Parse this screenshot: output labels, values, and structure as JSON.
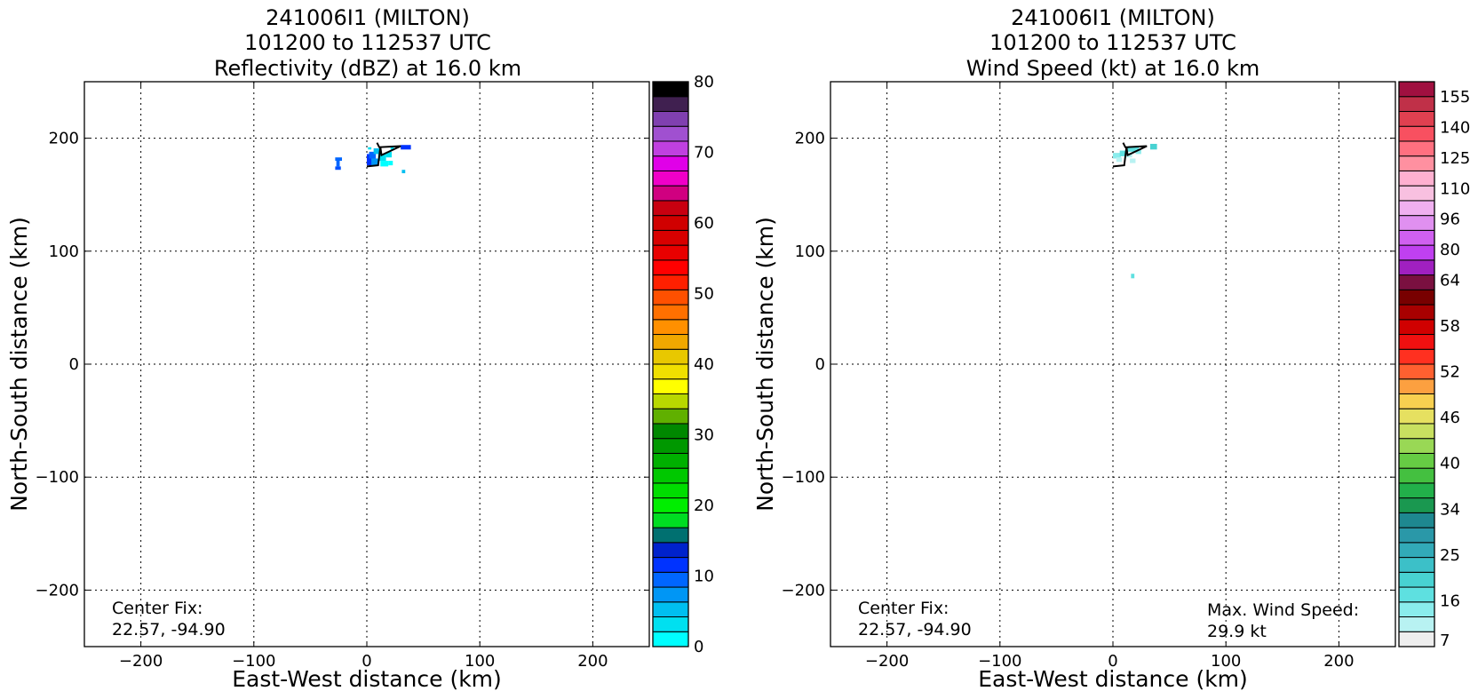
{
  "chart_data": [
    {
      "type": "heatmap",
      "title_lines": [
        "241006I1 (MILTON)",
        "101200 to 112537 UTC",
        "Reflectivity (dBZ) at 16.0 km"
      ],
      "xlabel": "East-West distance (km)",
      "ylabel": "North-South distance (km)",
      "xlim": [
        -250,
        250
      ],
      "ylim": [
        -250,
        250
      ],
      "xticks": [
        -200,
        -100,
        0,
        100,
        200
      ],
      "yticks": [
        -200,
        -100,
        0,
        100,
        200
      ],
      "xtick_labels": [
        "−200",
        "−100",
        "0",
        "100",
        "200"
      ],
      "ytick_labels": [
        "−200",
        "−100",
        "0",
        "100",
        "200"
      ],
      "grid": true,
      "colorbar": {
        "min": 0,
        "max": 80,
        "tick_values": [
          0,
          10,
          20,
          30,
          40,
          50,
          60,
          70,
          80
        ],
        "tick_labels": [
          "0",
          "10",
          "20",
          "30",
          "40",
          "50",
          "60",
          "70",
          "80"
        ],
        "colors": [
          "#00ffff",
          "#00e0f0",
          "#00bff0",
          "#0096f5",
          "#0066ff",
          "#0033ff",
          "#0022cc",
          "#007070",
          "#00dd22",
          "#00ee00",
          "#00dd00",
          "#00c800",
          "#00b000",
          "#009800",
          "#008800",
          "#60b000",
          "#b8d800",
          "#ffff00",
          "#f0e000",
          "#e8c800",
          "#f0a800",
          "#ff9000",
          "#ff7000",
          "#ff5000",
          "#ff2000",
          "#ff0000",
          "#e80000",
          "#d80000",
          "#d00000",
          "#c80010",
          "#d00080",
          "#f000c8",
          "#e000e8",
          "#c040e0",
          "#a050d0",
          "#8040b0",
          "#402050",
          "#000000"
        ]
      },
      "cells": [
        {
          "x": -28,
          "y": 180,
          "w": 6,
          "h": 3,
          "c": "#0066ff"
        },
        {
          "x": -27,
          "y": 175,
          "w": 3,
          "h": 7,
          "c": "#0066ff"
        },
        {
          "x": -28,
          "y": 172,
          "w": 5,
          "h": 3,
          "c": "#0050ff"
        },
        {
          "x": 0,
          "y": 176,
          "w": 5,
          "h": 10,
          "c": "#0033ff"
        },
        {
          "x": 2,
          "y": 182,
          "w": 6,
          "h": 6,
          "c": "#0066ff"
        },
        {
          "x": 4,
          "y": 176,
          "w": 6,
          "h": 6,
          "c": "#0096f5"
        },
        {
          "x": 6,
          "y": 186,
          "w": 5,
          "h": 5,
          "c": "#00bff0"
        },
        {
          "x": 10,
          "y": 180,
          "w": 7,
          "h": 6,
          "c": "#00e0f0"
        },
        {
          "x": 12,
          "y": 175,
          "w": 7,
          "h": 5,
          "c": "#00ffff"
        },
        {
          "x": 17,
          "y": 183,
          "w": 5,
          "h": 5,
          "c": "#00e0f0"
        },
        {
          "x": 19,
          "y": 176,
          "w": 4,
          "h": 4,
          "c": "#00ffff"
        },
        {
          "x": 21,
          "y": 190,
          "w": 3,
          "h": 3,
          "c": "#00e0f0"
        },
        {
          "x": 30,
          "y": 190,
          "w": 9,
          "h": 4,
          "c": "#0033ff"
        },
        {
          "x": 31,
          "y": 169,
          "w": 3,
          "h": 3,
          "c": "#00bff0"
        },
        {
          "x": 1,
          "y": 190,
          "w": 3,
          "h": 2,
          "c": "#00e0f0"
        }
      ],
      "center_fix_label": "Center Fix:",
      "center_fix_value": "22.57, -94.90"
    },
    {
      "type": "heatmap",
      "title_lines": [
        "241006I1 (MILTON)",
        "101200 to 112537 UTC",
        "Wind Speed (kt) at 16.0 km"
      ],
      "xlabel": "East-West distance (km)",
      "ylabel": "North-South distance (km)",
      "xlim": [
        -250,
        250
      ],
      "ylim": [
        -250,
        250
      ],
      "xticks": [
        -200,
        -100,
        0,
        100,
        200
      ],
      "yticks": [
        -200,
        -100,
        0,
        100,
        200
      ],
      "xtick_labels": [
        "−200",
        "−100",
        "0",
        "100",
        "200"
      ],
      "ytick_labels": [
        "−200",
        "−100",
        "0",
        "100",
        "200"
      ],
      "grid": true,
      "colorbar": {
        "min": 5,
        "max": 160,
        "tick_values": [
          7,
          16,
          25,
          34,
          40,
          46,
          52,
          58,
          64,
          80,
          96,
          110,
          125,
          140,
          155
        ],
        "tick_labels": [
          "7",
          "16",
          "25",
          "34",
          "40",
          "46",
          "52",
          "58",
          "64",
          "80",
          "96",
          "110",
          "125",
          "140",
          "155"
        ],
        "bounds": [
          5,
          10,
          13,
          16,
          19,
          22,
          25,
          28,
          31,
          34,
          36,
          38,
          40,
          42,
          44,
          46,
          48,
          50,
          52,
          54,
          56,
          58,
          60,
          62,
          64,
          72,
          80,
          88,
          96,
          103,
          110,
          117,
          125,
          132,
          140,
          147,
          155,
          160
        ],
        "colors": [
          "#eeeeee",
          "#b8f2f2",
          "#8aecec",
          "#5ee0e0",
          "#48d2d2",
          "#3cc0c8",
          "#32aab8",
          "#2a98a8",
          "#1e8890",
          "#1a9850",
          "#22b04a",
          "#44c040",
          "#66cc44",
          "#99d855",
          "#c8e060",
          "#e6e060",
          "#f8d050",
          "#fca040",
          "#ff6030",
          "#ff3020",
          "#f01010",
          "#d00000",
          "#a80000",
          "#780000",
          "#7a1040",
          "#a020c0",
          "#c040f0",
          "#d060f0",
          "#e090f0",
          "#f0b0f0",
          "#f8c0e0",
          "#ffb0d0",
          "#ff90a0",
          "#ff7080",
          "#f85060",
          "#e04050",
          "#c03048",
          "#a01040"
        ]
      },
      "cells": [
        {
          "x": 0,
          "y": 182,
          "w": 7,
          "h": 5,
          "c": "#8aecec"
        },
        {
          "x": 6,
          "y": 184,
          "w": 6,
          "h": 5,
          "c": "#5ee0e0"
        },
        {
          "x": 3,
          "y": 179,
          "w": 5,
          "h": 4,
          "c": "#b8f2f2"
        },
        {
          "x": 13,
          "y": 188,
          "w": 10,
          "h": 5,
          "c": "#5ee0e0"
        },
        {
          "x": 12,
          "y": 183,
          "w": 5,
          "h": 4,
          "c": "#b8f2f2"
        },
        {
          "x": 15,
          "y": 178,
          "w": 5,
          "h": 4,
          "c": "#b8f2f2"
        },
        {
          "x": 20,
          "y": 186,
          "w": 5,
          "h": 4,
          "c": "#8aecec"
        },
        {
          "x": 33,
          "y": 190,
          "w": 6,
          "h": 5,
          "c": "#48d2d2"
        },
        {
          "x": 16,
          "y": 76,
          "w": 3,
          "h": 4,
          "c": "#5ee0e0"
        }
      ],
      "center_fix_label": "Center Fix:",
      "center_fix_value": "22.57, -94.90",
      "max_wind_label": "Max. Wind Speed:",
      "max_wind_value": "29.9 kt"
    }
  ],
  "track": {
    "points": [
      [
        0,
        175
      ],
      [
        10,
        176
      ],
      [
        12,
        192
      ],
      [
        13,
        185
      ],
      [
        30,
        193
      ],
      [
        11,
        192
      ],
      [
        9,
        196
      ]
    ],
    "color": "#000000"
  }
}
